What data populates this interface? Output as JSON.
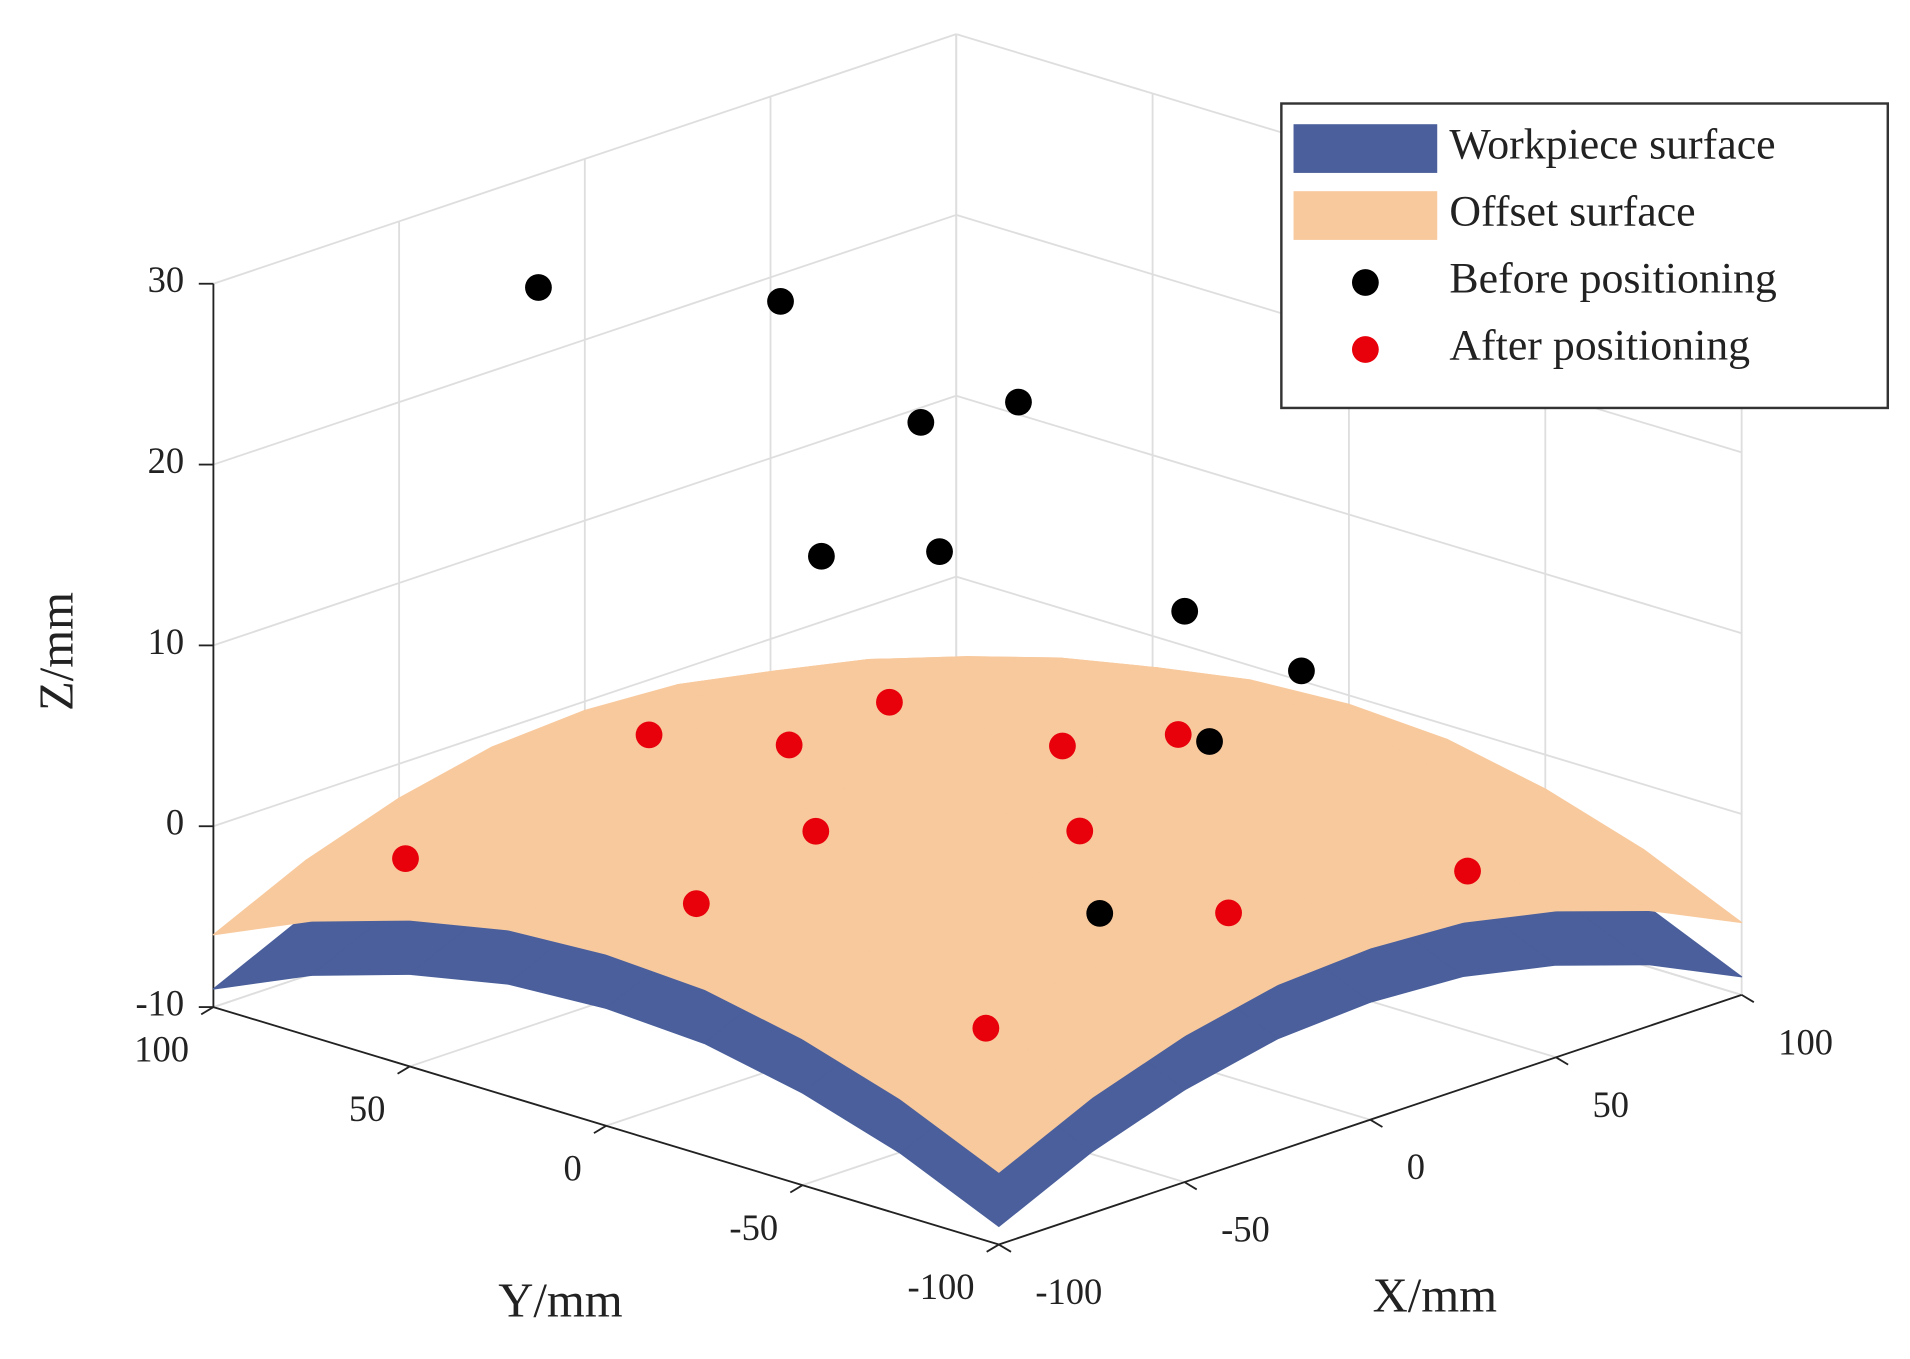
{
  "chart_data": {
    "type": "scatter3d",
    "xlabel": "X/mm",
    "ylabel": "Y/mm",
    "zlabel": "Z/mm",
    "xlim": [
      -100,
      100
    ],
    "ylim": [
      -100,
      100
    ],
    "zlim": [
      -10,
      30
    ],
    "xticks": [
      -100,
      -50,
      0,
      50,
      100
    ],
    "yticks": [
      -100,
      -50,
      0,
      50,
      100
    ],
    "zticks": [
      -10,
      0,
      10,
      20,
      30
    ],
    "grid": true,
    "legend": "upper right",
    "surfaces": [
      {
        "name": "Workpiece surface",
        "color": "#4a5f9b",
        "x": [
          -100,
          -75,
          -50,
          -25,
          0,
          25,
          50,
          75,
          100
        ],
        "y": [
          -100,
          -75,
          -50,
          -25,
          0,
          25,
          50,
          75,
          100
        ],
        "z": [
          [
            -9.0,
            -6.6,
            -4.9,
            -3.8,
            -3.5,
            -3.8,
            -4.9,
            -6.6,
            -9.0
          ],
          [
            -6.6,
            -4.2,
            -2.5,
            -1.4,
            -1.1,
            -1.4,
            -2.5,
            -4.2,
            -6.6
          ],
          [
            -4.9,
            -2.5,
            -0.7,
            0.3,
            0.6,
            0.3,
            -0.7,
            -2.5,
            -4.9
          ],
          [
            -3.8,
            -1.4,
            0.3,
            1.3,
            1.7,
            1.3,
            0.3,
            -1.4,
            -3.8
          ],
          [
            -3.5,
            -1.1,
            0.6,
            1.7,
            2.0,
            1.7,
            0.6,
            -1.1,
            -3.5
          ],
          [
            -3.8,
            -1.4,
            0.3,
            1.3,
            1.7,
            1.3,
            0.3,
            -1.4,
            -3.8
          ],
          [
            -4.9,
            -2.5,
            -0.7,
            0.3,
            0.6,
            0.3,
            -0.7,
            -2.5,
            -4.9
          ],
          [
            -6.6,
            -4.2,
            -2.5,
            -1.4,
            -1.1,
            -1.4,
            -2.5,
            -4.2,
            -6.6
          ],
          [
            -9.0,
            -6.6,
            -4.9,
            -3.8,
            -3.5,
            -3.8,
            -4.9,
            -6.6,
            -9.0
          ]
        ]
      },
      {
        "name": "Offset surface",
        "color": "#f8c99d",
        "x": [
          -100,
          -75,
          -50,
          -25,
          0,
          25,
          50,
          75,
          100
        ],
        "y": [
          -100,
          -75,
          -50,
          -25,
          0,
          25,
          50,
          75,
          100
        ],
        "z": [
          [
            -6.0,
            -3.6,
            -1.9,
            -0.8,
            -0.5,
            -0.8,
            -1.9,
            -3.6,
            -6.0
          ],
          [
            -3.6,
            -1.2,
            0.5,
            1.6,
            1.9,
            1.6,
            0.5,
            -1.2,
            -3.6
          ],
          [
            -1.9,
            0.5,
            2.3,
            3.3,
            3.6,
            3.3,
            2.3,
            0.5,
            -1.9
          ],
          [
            -0.8,
            1.6,
            3.3,
            4.3,
            4.7,
            4.3,
            3.3,
            1.6,
            -0.8
          ],
          [
            -0.5,
            1.9,
            3.6,
            4.7,
            5.0,
            4.7,
            3.6,
            1.9,
            -0.5
          ],
          [
            -0.8,
            1.6,
            3.3,
            4.3,
            4.7,
            4.3,
            3.3,
            1.6,
            -0.8
          ],
          [
            -1.9,
            0.5,
            2.3,
            3.3,
            3.6,
            3.3,
            2.3,
            0.5,
            -1.9
          ],
          [
            -3.6,
            -1.2,
            0.5,
            1.6,
            1.9,
            1.6,
            0.5,
            -1.2,
            -3.6
          ],
          [
            -6.0,
            -3.6,
            -1.9,
            -0.8,
            -0.5,
            -0.8,
            -1.9,
            -3.6,
            -6.0
          ]
        ]
      }
    ],
    "series": [
      {
        "name": "Before positioning",
        "color": "#000000",
        "x": [
          -22,
          3,
          8,
          29,
          -23,
          -6,
          23,
          28,
          17,
          -39
        ],
        "y": [
          91,
          53,
          22,
          17,
          18,
          4,
          -31,
          -56,
          -43,
          -68
        ],
        "z": [
          25,
          25,
          20,
          20,
          15,
          15,
          12,
          10,
          6,
          2
        ]
      },
      {
        "name": "After positioning",
        "color": "#e8000b",
        "x": [
          -80,
          -25,
          -19,
          8,
          7,
          35,
          -52,
          -19,
          -81,
          -17,
          41,
          -76
        ],
        "y": [
          70,
          60,
          30,
          30,
          -15,
          -18,
          -8,
          -44,
          -5,
          -80,
          -86,
          -74
        ],
        "z": [
          -1.2,
          2.5,
          3.5,
          4,
          4.6,
          3.5,
          3.5,
          3.6,
          1.3,
          1.3,
          0,
          -1.4
        ]
      }
    ]
  }
}
